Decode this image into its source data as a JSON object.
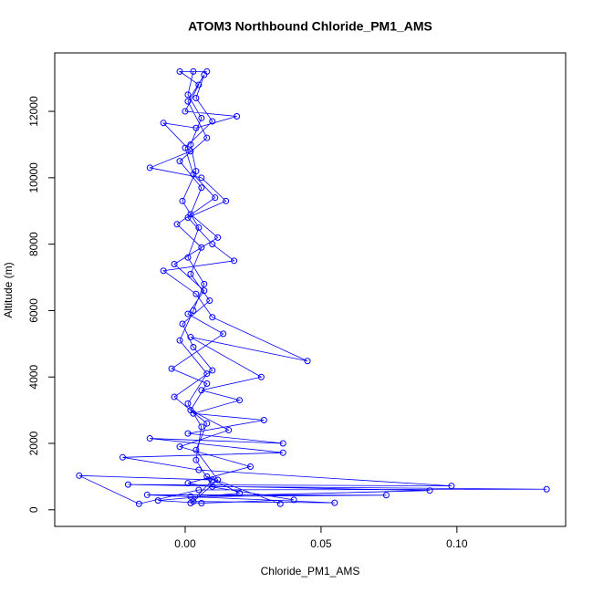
{
  "chart_data": {
    "type": "line",
    "title": "ATOM3 Northbound Chloride_PM1_AMS",
    "x_label": "Chloride_PM1_AMS",
    "y_label": "Altitude (m)",
    "color": "#0000ff",
    "marker": "open-circle",
    "xlim": [
      -0.048,
      0.14
    ],
    "ylim": [
      -500,
      13760
    ],
    "xticks": [
      {
        "value": 0,
        "label": "0.00"
      },
      {
        "value": 0.05,
        "label": "0.05"
      },
      {
        "value": 0.1,
        "label": "0.10"
      }
    ],
    "yticks": [
      0,
      2000,
      4000,
      6000,
      8000,
      10000,
      12000
    ],
    "x": [
      0.002,
      0.01,
      -0.039,
      -0.017,
      0.005,
      0.133,
      0.01,
      0.004,
      0.006,
      0.001,
      0.008,
      -0.002,
      0.003,
      0.007,
      0.001,
      0.005,
      -0.001,
      0.004,
      0.002,
      0.006,
      0.001,
      0.003,
      0.008,
      -0.002,
      0.005,
      0.0,
      0.019,
      0.004,
      -0.008,
      0.002,
      -0.013,
      0.006,
      0.015,
      0.001,
      0.01,
      0.018,
      -0.008,
      0.004,
      0.01,
      0.045,
      0.002,
      0.028,
      0.006,
      0.02,
      0.003,
      0.029,
      0.001,
      0.036,
      -0.013,
      0.036,
      -0.023,
      0.005,
      0.098,
      -0.021,
      0.09,
      0.002,
      0.074,
      -0.014,
      0.055,
      0.003,
      0.012,
      0.004,
      0.008,
      -0.004,
      0.01,
      0.003,
      -0.001,
      0.009,
      0.002,
      0.006,
      -0.003,
      0.011,
      0.003,
      0.0,
      0.01,
      0.004,
      0.007,
      0.001,
      0.008,
      -0.002,
      0.006,
      0.002,
      0.012,
      -0.004,
      0.007,
      0.001,
      0.014,
      -0.005,
      0.008,
      0.002,
      0.016,
      -0.002,
      0.024,
      0.001,
      0.04,
      0.006,
      -0.01,
      0.02,
      0.008,
      0.035
    ],
    "values": [
      200,
      900,
      1030,
      180,
      600,
      620,
      700,
      1500,
      2500,
      3200,
      4100,
      5100,
      6000,
      6800,
      7600,
      8500,
      9300,
      10200,
      11000,
      11800,
      12500,
      13200,
      13200,
      13200,
      12800,
      12000,
      11850,
      11500,
      11650,
      10800,
      10300,
      10000,
      9300,
      8800,
      8000,
      7500,
      7200,
      6500,
      5800,
      4480,
      5200,
      4000,
      3600,
      3300,
      2900,
      2700,
      2300,
      2000,
      2150,
      1720,
      1580,
      1200,
      720,
      760,
      580,
      400,
      440,
      450,
      210,
      250,
      900,
      1800,
      2600,
      3400,
      4200,
      4900,
      5600,
      6300,
      7100,
      7900,
      8600,
      9400,
      10100,
      10900,
      11700,
      12400,
      13100,
      12300,
      11200,
      10500,
      9700,
      8900,
      8200,
      7400,
      6600,
      5900,
      5300,
      4250,
      3800,
      3000,
      2400,
      1900,
      1300,
      800,
      300,
      200,
      280,
      500,
      1000,
      180
    ]
  }
}
